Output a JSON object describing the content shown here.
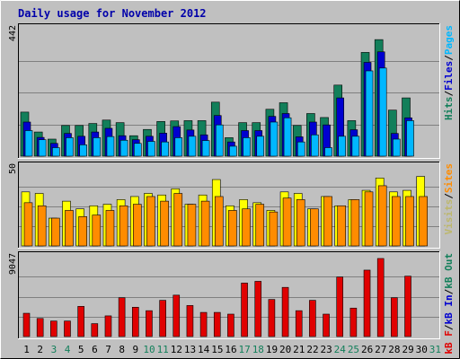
{
  "chart_data": {
    "type": "bar",
    "title": "Daily usage for November 2012",
    "x": [
      "1",
      "2",
      "3",
      "4",
      "5",
      "6",
      "7",
      "8",
      "9",
      "10",
      "11",
      "12",
      "13",
      "14",
      "15",
      "16",
      "17",
      "18",
      "19",
      "20",
      "21",
      "22",
      "23",
      "24",
      "25",
      "26",
      "27",
      "28",
      "29",
      "30",
      "31"
    ],
    "weekend_days": [
      "3",
      "4",
      "10",
      "11",
      "17",
      "18",
      "24",
      "25",
      "31"
    ],
    "legend_placement": "right side, vertical",
    "colors": {
      "background": "#c0c0c0",
      "title": "#0000aa",
      "hits": "#127f5a",
      "files": "#0000d0",
      "pages": "#00b7ff",
      "visits": "#ffff00",
      "sites": "#ff8c00",
      "kb_f": "#e00000",
      "kb_in": "#0000d0",
      "kb_out": "#127f5a",
      "weekday_label": "#000000",
      "weekend_label": "#127f5a"
    },
    "panels": [
      {
        "id": "hits",
        "ymax_label": "442",
        "ylim": [
          0,
          442
        ],
        "legend": [
          {
            "text": "Hits",
            "color": "#127f5a"
          },
          {
            "text": "/",
            "color": "#000000"
          },
          {
            "text": "Files",
            "color": "#0000d0"
          },
          {
            "text": "/",
            "color": "#000000"
          },
          {
            "text": "Pages",
            "color": "#00b7ff"
          }
        ],
        "series": [
          {
            "name": "Hits",
            "values": [
              155,
              85,
              60,
              108,
              108,
              115,
              127,
              118,
              72,
              94,
              122,
              124,
              125,
              125,
              190,
              65,
              118,
              118,
              165,
              188,
              108,
              150,
              136,
              250,
              125,
              365,
              410,
              162,
              205,
              0,
              0
            ]
          },
          {
            "name": "Files",
            "values": [
              120,
              66,
              45,
              80,
              70,
              85,
              98,
              72,
              58,
              70,
              81,
              104,
              92,
              75,
              143,
              50,
              90,
              90,
              140,
              150,
              68,
              120,
              110,
              205,
              93,
              330,
              367,
              80,
              135,
              0,
              0
            ]
          },
          {
            "name": "Pages",
            "values": [
              90,
              58,
              30,
              65,
              40,
              65,
              69,
              56,
              45,
              52,
              50,
              65,
              70,
              55,
              110,
              35,
              65,
              70,
              120,
              135,
              50,
              75,
              30,
              70,
              70,
              300,
              310,
              60,
              125,
              0,
              0
            ]
          }
        ]
      },
      {
        "id": "visits",
        "ymax_label": "50",
        "ylim": [
          0,
          50
        ],
        "legend": [
          {
            "text": "Visits",
            "color": "#bdb76b"
          },
          {
            "text": "/",
            "color": "#000000"
          },
          {
            "text": "Sites",
            "color": "#ff8c00"
          }
        ],
        "series": [
          {
            "name": "Visits",
            "values": [
              35,
              34,
              18,
              29,
              24,
              26,
              27,
              30,
              32,
              34,
              33,
              37,
              27,
              33,
              43,
              26,
              30,
              28,
              23,
              35,
              34,
              24,
              32,
              26,
              30,
              36,
              44,
              35,
              36,
              45,
              0
            ]
          },
          {
            "name": "Sites",
            "values": [
              28,
              26,
              18,
              23,
              19,
              20,
              23,
              26,
              27,
              32,
              29,
              34,
              27,
              29,
              32,
              23,
              24,
              27,
              22,
              31,
              30,
              24,
              32,
              26,
              30,
              35,
              39,
              32,
              32,
              32,
              0
            ]
          }
        ]
      },
      {
        "id": "kbytes",
        "ymax_label": "9047",
        "ylim": [
          0,
          9047
        ],
        "legend": [
          {
            "text": "kB F",
            "color": "#e00000"
          },
          {
            "text": "/",
            "color": "#000000"
          },
          {
            "text": "kB In",
            "color": "#0000d0"
          },
          {
            "text": "/",
            "color": "#000000"
          },
          {
            "text": "kB Out",
            "color": "#127f5a"
          }
        ],
        "series": [
          {
            "name": "kB F",
            "values": [
              2700,
              2100,
              1800,
              1800,
              3500,
              1500,
              2400,
              4500,
              3400,
              3000,
              4200,
              4800,
              3600,
              2800,
              2800,
              2600,
              6200,
              6400,
              4300,
              5700,
              3000,
              4200,
              2600,
              6900,
              3300,
              7700,
              9047,
              4500,
              7000,
              0,
              0
            ]
          }
        ]
      }
    ]
  }
}
